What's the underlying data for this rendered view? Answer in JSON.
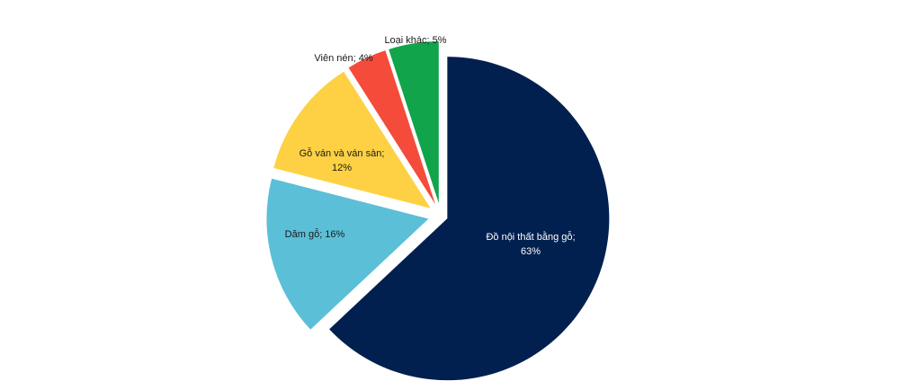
{
  "chart_data": {
    "type": "pie",
    "title": "",
    "start_angle_deg": 0,
    "direction": "clockwise",
    "slices": [
      {
        "name": "Đồ nội thất bằng gỗ",
        "value": 63,
        "label_lines": [
          "Đồ nội thất bằng gỗ;",
          "63%"
        ],
        "color": "#01204f",
        "label_color": "#ffffff"
      },
      {
        "name": "Dăm gỗ",
        "value": 16,
        "label_lines": [
          "Dăm gỗ; 16%"
        ],
        "color": "#5bbfd7",
        "label_color": "#1a1a1a"
      },
      {
        "name": "Gỗ ván và ván sàn",
        "value": 12,
        "label_lines": [
          "Gỗ ván và ván sàn;",
          "12%"
        ],
        "color": "#fdd143",
        "label_color": "#1a1a1a"
      },
      {
        "name": "Viên nén",
        "value": 4,
        "label_lines": [
          "Viên nén; 4%"
        ],
        "color": "#f44b3b",
        "label_color": "#1a1a1a"
      },
      {
        "name": "Loại khác",
        "value": 5,
        "label_lines": [
          "Loại khác; 5%"
        ],
        "color": "#12a44a",
        "label_color": "#1a1a1a"
      }
    ]
  }
}
